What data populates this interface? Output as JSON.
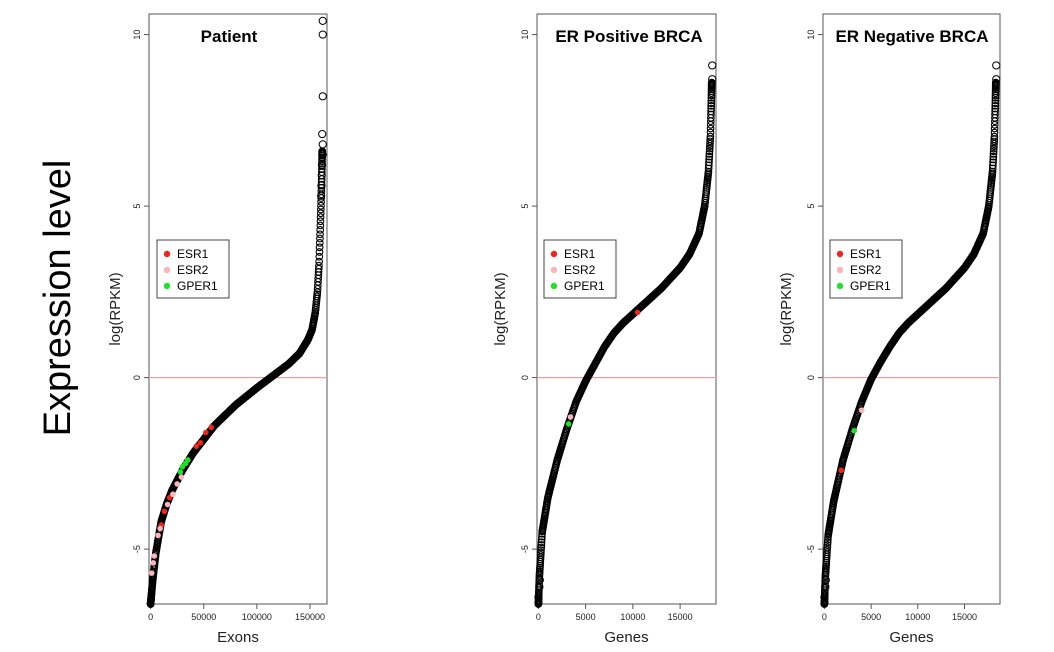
{
  "figure": {
    "side_label": "Expression level"
  },
  "chart_data": [
    {
      "type": "scatter",
      "title": "Patient",
      "xlabel": "Exons",
      "ylabel": "log(RPKM)",
      "x_ticks": [
        0,
        50000,
        100000,
        150000
      ],
      "x_tick_labels": [
        "0",
        "50000",
        "100000",
        "150000"
      ],
      "y_ticks": [
        -5,
        0,
        5,
        10
      ],
      "y_tick_labels": [
        "-5",
        "0",
        "5",
        "10"
      ],
      "xlim": [
        -1500,
        166000
      ],
      "ylim": [
        -6.6,
        10.6
      ],
      "reference_line_y": 0,
      "legend": {
        "position": "left-middle",
        "entries": [
          {
            "label": "ESR1",
            "color": "#e8281e"
          },
          {
            "label": "ESR2",
            "color": "#f7b5bd"
          },
          {
            "label": "GPER1",
            "color": "#1fe02a"
          }
        ]
      },
      "curve": [
        [
          0,
          -6.6
        ],
        [
          2000,
          -5.9
        ],
        [
          5000,
          -5.1
        ],
        [
          10000,
          -4.2
        ],
        [
          15000,
          -3.7
        ],
        [
          20000,
          -3.3
        ],
        [
          30000,
          -2.7
        ],
        [
          40000,
          -2.2
        ],
        [
          60000,
          -1.4
        ],
        [
          80000,
          -0.8
        ],
        [
          100000,
          -0.3
        ],
        [
          115000,
          0.05
        ],
        [
          130000,
          0.4
        ],
        [
          140000,
          0.7
        ],
        [
          148000,
          1.1
        ],
        [
          152000,
          1.4
        ],
        [
          155000,
          1.9
        ],
        [
          157000,
          2.5
        ],
        [
          158500,
          3.3
        ],
        [
          159500,
          4.2
        ],
        [
          160300,
          5.0
        ],
        [
          161000,
          5.8
        ],
        [
          161500,
          6.6
        ]
      ],
      "outliers": [
        [
          160500,
          5.3
        ],
        [
          160800,
          5.6
        ],
        [
          161000,
          5.9
        ],
        [
          161300,
          6.2
        ],
        [
          161600,
          6.5
        ],
        [
          161800,
          6.5
        ],
        [
          162000,
          6.8
        ],
        [
          161500,
          7.1
        ],
        [
          162000,
          8.2
        ],
        [
          162000,
          10.0
        ],
        [
          162000,
          10.4
        ]
      ],
      "series": [
        {
          "name": "ESR1",
          "color": "#e8281e",
          "points": [
            [
              10000,
              -4.3
            ],
            [
              13000,
              -3.9
            ],
            [
              18000,
              -3.5
            ],
            [
              43000,
              -2.0
            ],
            [
              47000,
              -1.9
            ],
            [
              52000,
              -1.6
            ],
            [
              57000,
              -1.45
            ]
          ]
        },
        {
          "name": "ESR2",
          "color": "#f7b5bd",
          "points": [
            [
              1000,
              -5.7
            ],
            [
              2500,
              -5.4
            ],
            [
              3500,
              -5.2
            ],
            [
              7000,
              -4.6
            ],
            [
              9000,
              -4.4
            ],
            [
              16000,
              -3.7
            ],
            [
              21000,
              -3.4
            ],
            [
              25000,
              -3.1
            ],
            [
              29000,
              -2.9
            ]
          ]
        },
        {
          "name": "GPER1",
          "color": "#1fe02a",
          "points": [
            [
              28000,
              -2.75
            ],
            [
              30000,
              -2.6
            ],
            [
              33000,
              -2.5
            ],
            [
              35000,
              -2.4
            ]
          ]
        }
      ]
    },
    {
      "type": "scatter",
      "title": "ER Positive BRCA",
      "xlabel": "Genes",
      "ylabel": "log(RPKM)",
      "x_ticks": [
        0,
        5000,
        10000,
        15000
      ],
      "x_tick_labels": [
        "0",
        "5000",
        "10000",
        "15000"
      ],
      "y_ticks": [
        -5,
        0,
        5,
        10
      ],
      "y_tick_labels": [
        "-5",
        "0",
        "5",
        "10"
      ],
      "xlim": [
        -150,
        18800
      ],
      "ylim": [
        -6.6,
        10.6
      ],
      "reference_line_y": 0,
      "legend": {
        "position": "left-middle",
        "entries": [
          {
            "label": "ESR1",
            "color": "#e8281e"
          },
          {
            "label": "ESR2",
            "color": "#f7b5bd"
          },
          {
            "label": "GPER1",
            "color": "#1fe02a"
          }
        ]
      },
      "curve": [
        [
          0,
          -6.6
        ],
        [
          100,
          -5.8
        ],
        [
          400,
          -4.5
        ],
        [
          1000,
          -3.5
        ],
        [
          2000,
          -2.4
        ],
        [
          3000,
          -1.5
        ],
        [
          4000,
          -0.7
        ],
        [
          5000,
          -0.1
        ],
        [
          6000,
          0.4
        ],
        [
          7000,
          0.9
        ],
        [
          8000,
          1.3
        ],
        [
          9000,
          1.6
        ],
        [
          10000,
          1.85
        ],
        [
          11000,
          2.1
        ],
        [
          12000,
          2.35
        ],
        [
          13000,
          2.6
        ],
        [
          14000,
          2.9
        ],
        [
          15000,
          3.2
        ],
        [
          16000,
          3.6
        ],
        [
          17000,
          4.2
        ],
        [
          17600,
          5.0
        ],
        [
          18000,
          6.0
        ],
        [
          18200,
          7.0
        ],
        [
          18300,
          8.0
        ],
        [
          18350,
          8.6
        ]
      ],
      "outliers": [
        [
          0,
          -6.4
        ],
        [
          100,
          -6.1
        ],
        [
          150,
          -5.9
        ],
        [
          18400,
          8.7
        ],
        [
          18400,
          9.1
        ]
      ],
      "series": [
        {
          "name": "ESR1",
          "color": "#e8281e",
          "points": [
            [
              10500,
              1.9
            ]
          ]
        },
        {
          "name": "ESR2",
          "color": "#f7b5bd",
          "points": [
            [
              3400,
              -1.15
            ]
          ]
        },
        {
          "name": "GPER1",
          "color": "#1fe02a",
          "points": [
            [
              3200,
              -1.35
            ]
          ]
        }
      ]
    },
    {
      "type": "scatter",
      "title": "ER Negative BRCA",
      "xlabel": "Genes",
      "ylabel": "log(RPKM)",
      "x_ticks": [
        0,
        5000,
        10000,
        15000
      ],
      "x_tick_labels": [
        "0",
        "5000",
        "10000",
        "15000"
      ],
      "y_ticks": [
        -5,
        0,
        5,
        10
      ],
      "y_tick_labels": [
        "-5",
        "0",
        "5",
        "10"
      ],
      "xlim": [
        -150,
        18800
      ],
      "ylim": [
        -6.6,
        10.6
      ],
      "reference_line_y": 0,
      "legend": {
        "position": "left-middle",
        "entries": [
          {
            "label": "ESR1",
            "color": "#e8281e"
          },
          {
            "label": "ESR2",
            "color": "#f7b5bd"
          },
          {
            "label": "GPER1",
            "color": "#1fe02a"
          }
        ]
      },
      "curve": [
        [
          0,
          -6.6
        ],
        [
          100,
          -5.8
        ],
        [
          400,
          -4.6
        ],
        [
          1000,
          -3.6
        ],
        [
          2000,
          -2.4
        ],
        [
          3000,
          -1.5
        ],
        [
          4000,
          -0.7
        ],
        [
          5000,
          -0.05
        ],
        [
          6000,
          0.45
        ],
        [
          7000,
          0.9
        ],
        [
          8000,
          1.3
        ],
        [
          9000,
          1.6
        ],
        [
          10000,
          1.85
        ],
        [
          11000,
          2.1
        ],
        [
          12000,
          2.35
        ],
        [
          13000,
          2.6
        ],
        [
          14000,
          2.9
        ],
        [
          15000,
          3.2
        ],
        [
          16000,
          3.6
        ],
        [
          17000,
          4.2
        ],
        [
          17600,
          5.0
        ],
        [
          18000,
          6.0
        ],
        [
          18200,
          7.0
        ],
        [
          18300,
          8.0
        ],
        [
          18350,
          8.6
        ]
      ],
      "outliers": [
        [
          0,
          -6.4
        ],
        [
          100,
          -6.1
        ],
        [
          150,
          -5.9
        ],
        [
          18400,
          8.7
        ],
        [
          18400,
          9.1
        ]
      ],
      "series": [
        {
          "name": "ESR1",
          "color": "#e8281e",
          "points": [
            [
              1800,
              -2.7
            ]
          ]
        },
        {
          "name": "ESR2",
          "color": "#f7b5bd",
          "points": [
            [
              4000,
              -0.95
            ]
          ]
        },
        {
          "name": "GPER1",
          "color": "#1fe02a",
          "points": [
            [
              3200,
              -1.55
            ]
          ]
        }
      ]
    }
  ]
}
